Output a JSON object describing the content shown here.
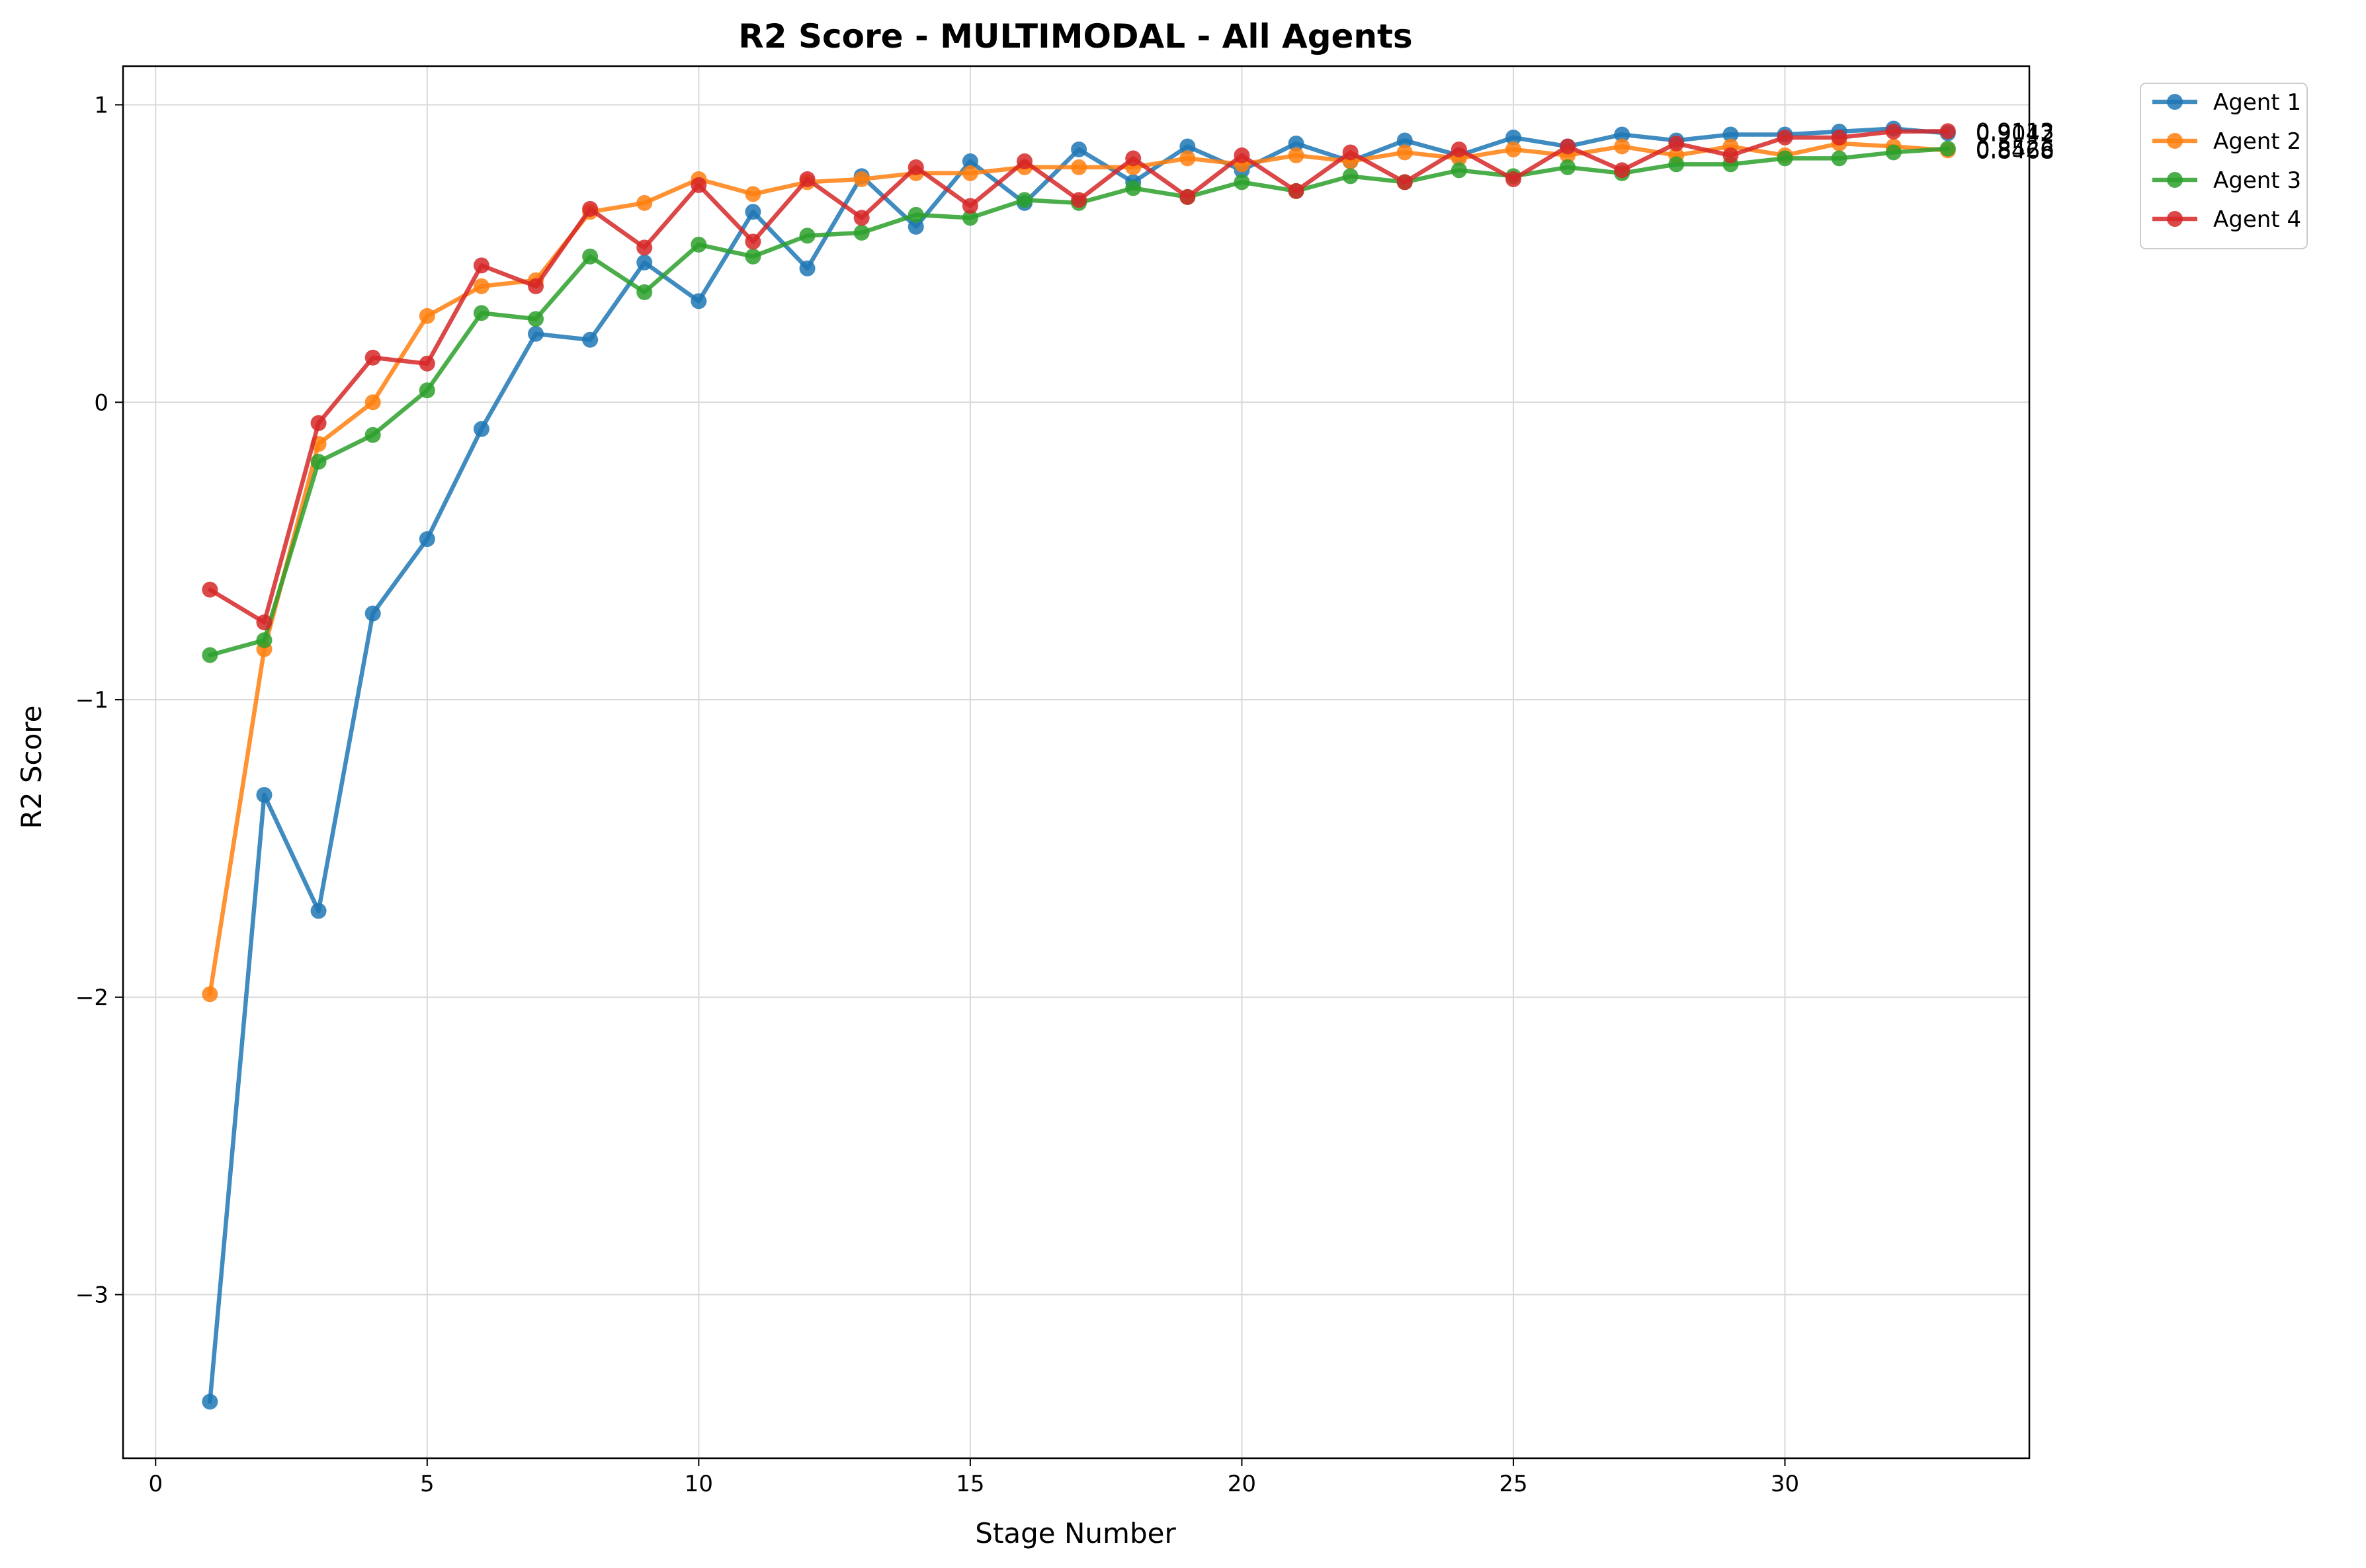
{
  "chart_data": {
    "type": "line",
    "title": "R2 Score - MULTIMODAL - All Agents",
    "xlabel": "Stage Number",
    "ylabel": "R2 Score",
    "xlim": [
      -0.6,
      34.5
    ],
    "ylim": [
      -3.55,
      1.13
    ],
    "xticks": [
      0,
      5,
      10,
      15,
      20,
      25,
      30
    ],
    "yticks": [
      1,
      0,
      -1,
      -2,
      -3
    ],
    "ytick_labels": [
      "1",
      "0",
      "−1",
      "−2",
      "−3"
    ],
    "grid": true,
    "legend_position": "outside-top-right",
    "x": [
      1,
      2,
      3,
      4,
      5,
      6,
      7,
      8,
      9,
      10,
      11,
      12,
      13,
      14,
      15,
      16,
      17,
      18,
      19,
      20,
      21,
      22,
      23,
      24,
      25,
      26,
      27,
      28,
      29,
      30,
      31,
      32,
      33
    ],
    "series": [
      {
        "name": "Agent 1",
        "color": "#1f77b4",
        "values": [
          -3.36,
          -1.32,
          -1.71,
          -0.71,
          -0.46,
          -0.09,
          0.23,
          0.21,
          0.47,
          0.34,
          0.64,
          0.45,
          0.76,
          0.59,
          0.81,
          0.67,
          0.85,
          0.74,
          0.86,
          0.78,
          0.87,
          0.81,
          0.88,
          0.83,
          0.89,
          0.86,
          0.9,
          0.88,
          0.9,
          0.9,
          0.91,
          0.92,
          0.9042
        ]
      },
      {
        "name": "Agent 2",
        "color": "#ff7f0e",
        "values": [
          -1.99,
          -0.83,
          -0.14,
          0.0,
          0.29,
          0.39,
          0.41,
          0.64,
          0.67,
          0.75,
          0.7,
          0.74,
          0.75,
          0.77,
          0.77,
          0.79,
          0.79,
          0.79,
          0.82,
          0.8,
          0.83,
          0.81,
          0.84,
          0.82,
          0.85,
          0.83,
          0.86,
          0.83,
          0.86,
          0.83,
          0.87,
          0.86,
          0.8468
        ]
      },
      {
        "name": "Agent 3",
        "color": "#2ca02c",
        "values": [
          -0.85,
          -0.8,
          -0.2,
          -0.11,
          0.04,
          0.3,
          0.28,
          0.49,
          0.37,
          0.53,
          0.49,
          0.56,
          0.57,
          0.63,
          0.62,
          0.68,
          0.67,
          0.72,
          0.69,
          0.74,
          0.71,
          0.76,
          0.74,
          0.78,
          0.76,
          0.79,
          0.77,
          0.8,
          0.8,
          0.82,
          0.82,
          0.84,
          0.8526
        ]
      },
      {
        "name": "Agent 4",
        "color": "#d62728",
        "values": [
          -0.63,
          -0.74,
          -0.07,
          0.15,
          0.13,
          0.46,
          0.39,
          0.65,
          0.52,
          0.73,
          0.54,
          0.75,
          0.62,
          0.79,
          0.66,
          0.81,
          0.68,
          0.82,
          0.69,
          0.83,
          0.71,
          0.84,
          0.74,
          0.85,
          0.75,
          0.86,
          0.78,
          0.87,
          0.83,
          0.89,
          0.89,
          0.91,
          0.9113
        ]
      }
    ],
    "end_labels": [
      "0.9042",
      "0.8468",
      "0.8526",
      "0.9113"
    ]
  }
}
